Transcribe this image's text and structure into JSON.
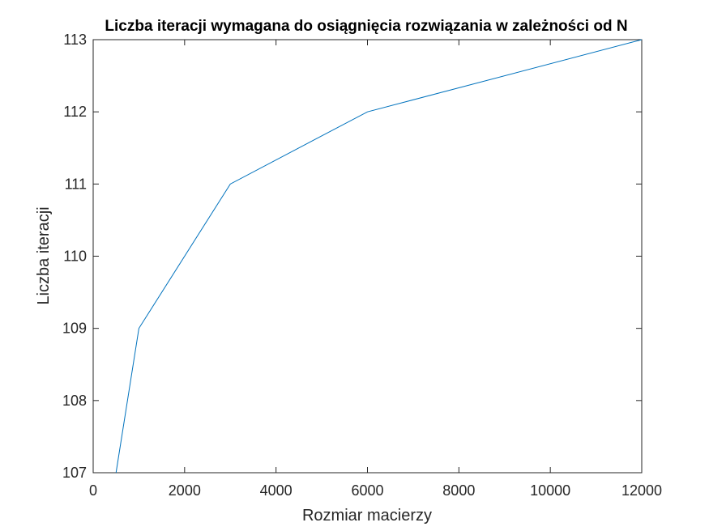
{
  "chart_data": {
    "type": "line",
    "title": "Liczba iteracji wymagana do osiągnięcia rozwiązania w zależności od N",
    "xlabel": "Rozmiar macierzy",
    "ylabel": "Liczba iteracji",
    "xlim": [
      0,
      12000
    ],
    "ylim": [
      107,
      113
    ],
    "xticks": [
      0,
      2000,
      4000,
      6000,
      8000,
      10000,
      12000
    ],
    "yticks": [
      107,
      108,
      109,
      110,
      111,
      112,
      113
    ],
    "grid": false,
    "legend": "none",
    "series": [
      {
        "color": "#0072BD",
        "x": [
          500,
          1000,
          3000,
          6000,
          12000
        ],
        "y": [
          107,
          109,
          111,
          112,
          113
        ]
      }
    ]
  }
}
